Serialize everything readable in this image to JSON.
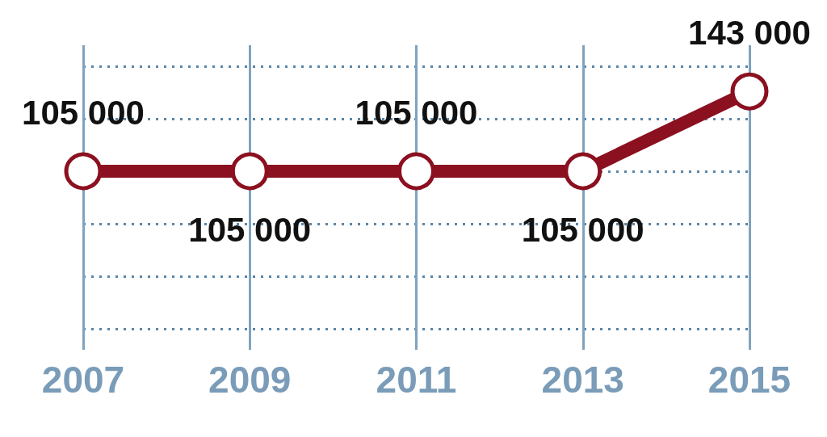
{
  "chart_data": {
    "type": "line",
    "categories": [
      "2007",
      "2009",
      "2011",
      "2013",
      "2015"
    ],
    "series": [
      {
        "color": "#8b1020",
        "values": [
          105000,
          105000,
          105000,
          105000,
          143000
        ],
        "value_labels": [
          "105 000",
          "105 000",
          "105 000",
          "105 000",
          "143 000"
        ]
      }
    ],
    "ylim": [
      20000,
      165000
    ],
    "yticks": [
      {
        "value": 30000,
        "label": null
      },
      {
        "value": 55000,
        "label": null
      },
      {
        "value": 80000,
        "label": null
      },
      {
        "value": 105000,
        "label": null
      },
      {
        "value": 130000,
        "label": null
      },
      {
        "value": 155000,
        "label": null
      }
    ],
    "grid": true,
    "marker": "circle",
    "line_style": "solid"
  }
}
